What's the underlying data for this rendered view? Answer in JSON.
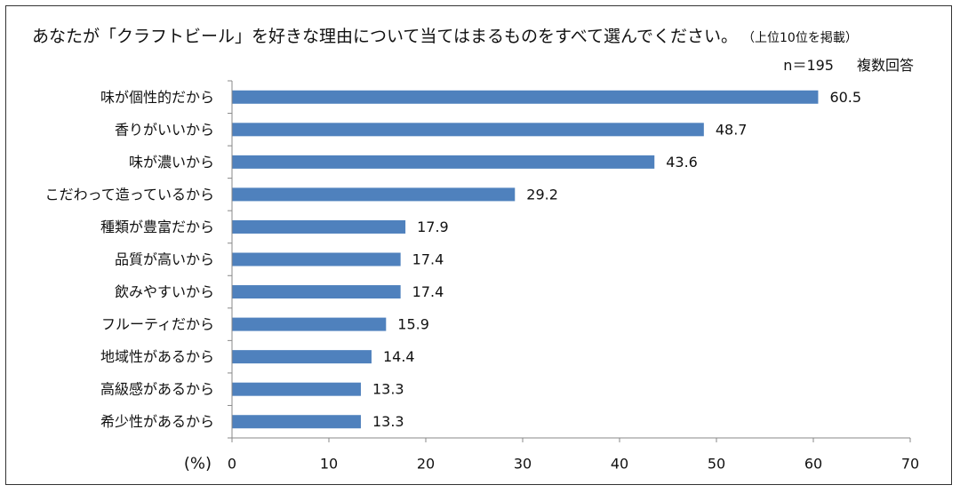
{
  "chart_data": {
    "type": "bar",
    "orientation": "horizontal",
    "title": "あなたが「クラフトビール」を好きな理由について当てはまるものをすべて選んでください。",
    "title_note": "（上位10位を掲載）",
    "sample_size": "n＝195",
    "response_type": "複数回答",
    "xlabel": "(%)",
    "xlim": [
      0,
      70
    ],
    "xticks": [
      0,
      10,
      20,
      30,
      40,
      50,
      60,
      70
    ],
    "grid": false,
    "bar_color": "#4F81BD",
    "categories": [
      "味が個性的だから",
      "香りがいいから",
      "味が濃いから",
      "こだわって造っているから",
      "種類が豊富だから",
      "品質が高いから",
      "飲みやすいから",
      "フルーティだから",
      "地域性があるから",
      "高級感があるから",
      "希少性があるから"
    ],
    "values": [
      60.5,
      48.7,
      43.6,
      29.2,
      17.9,
      17.4,
      17.4,
      15.9,
      14.4,
      13.3,
      13.3
    ]
  }
}
